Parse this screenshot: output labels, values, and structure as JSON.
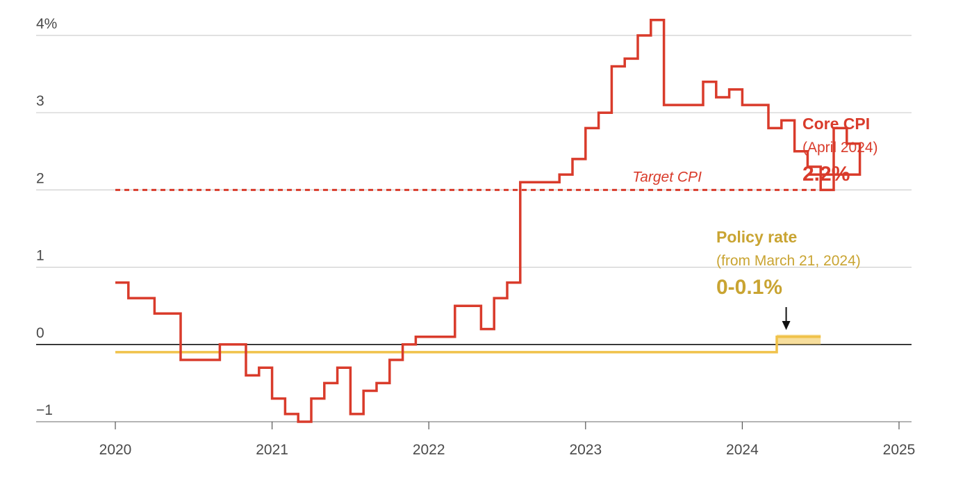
{
  "colors": {
    "cpi": "#d93b2b",
    "policy": "#f0c24b",
    "policy_label": "#c9a432",
    "grid": "#cfcfcf",
    "zero": "#111111",
    "axis_text": "#4a4a4a"
  },
  "chart_data": {
    "type": "line",
    "title": "",
    "xlabel": "",
    "ylabel": "",
    "xlim": [
      2019.55,
      2025.1
    ],
    "ylim": [
      -1.1,
      4.3
    ],
    "grid": true,
    "y_ticks": [
      {
        "value": 4,
        "label": "4%"
      },
      {
        "value": 3,
        "label": "3"
      },
      {
        "value": 2,
        "label": "2"
      },
      {
        "value": 1,
        "label": "1"
      },
      {
        "value": 0,
        "label": "0"
      },
      {
        "value": -1,
        "label": "−1"
      }
    ],
    "x_ticks": [
      {
        "value": 2020,
        "label": "2020"
      },
      {
        "value": 2021,
        "label": "2021"
      },
      {
        "value": 2022,
        "label": "2022"
      },
      {
        "value": 2023,
        "label": "2023"
      },
      {
        "value": 2024,
        "label": "2024"
      },
      {
        "value": 2025,
        "label": "2025"
      }
    ],
    "series": [
      {
        "name": "Core CPI",
        "style": "step",
        "x_start": 2020,
        "step_months": 1,
        "values": [
          0.8,
          0.6,
          0.6,
          0.4,
          0.4,
          -0.2,
          -0.2,
          -0.2,
          0.0,
          0.0,
          -0.4,
          -0.3,
          -0.7,
          -0.9,
          -1.0,
          -0.7,
          -0.5,
          -0.3,
          -0.9,
          -0.6,
          -0.5,
          -0.2,
          0.0,
          0.1,
          0.1,
          0.1,
          0.5,
          0.5,
          0.2,
          0.6,
          0.8,
          2.1,
          2.1,
          2.1,
          2.2,
          2.4,
          2.8,
          3.0,
          3.6,
          3.7,
          4.0,
          4.2,
          3.1,
          3.1,
          3.1,
          3.4,
          3.2,
          3.3,
          3.1,
          3.1,
          2.8,
          2.9,
          2.5,
          2.3,
          2.0,
          2.8,
          2.6,
          2.2
        ],
        "line_end_x": 2024.42
      },
      {
        "name": "Policy rate",
        "style": "step",
        "points": [
          {
            "x": 2020,
            "y": -0.1
          },
          {
            "x": 2024.22,
            "y": -0.1
          },
          {
            "x": 2024.22,
            "y": 0.1
          },
          {
            "x": 2024.5,
            "y": 0.1
          }
        ]
      }
    ],
    "reference_lines": [
      {
        "label": "Target CPI",
        "y": 2,
        "x_start": 2020,
        "x_end": 2024.5,
        "label_x": 2023.52,
        "style": "dashed"
      }
    ],
    "annotations": {
      "cpi": {
        "title": "Core CPI",
        "subtitle": "(April 2024)",
        "value": "2.2%",
        "anchor_x": 2024.39,
        "anchor_y": 3.0
      },
      "policy": {
        "title": "Policy rate",
        "subtitle": "(from March 21, 2024)",
        "value": "0-0.1%",
        "anchor_x": 2023.85,
        "anchor_y": 1.35
      },
      "arrow": {
        "x": 2024.28,
        "y_from": 0.48,
        "y_to": 0.16
      }
    }
  }
}
